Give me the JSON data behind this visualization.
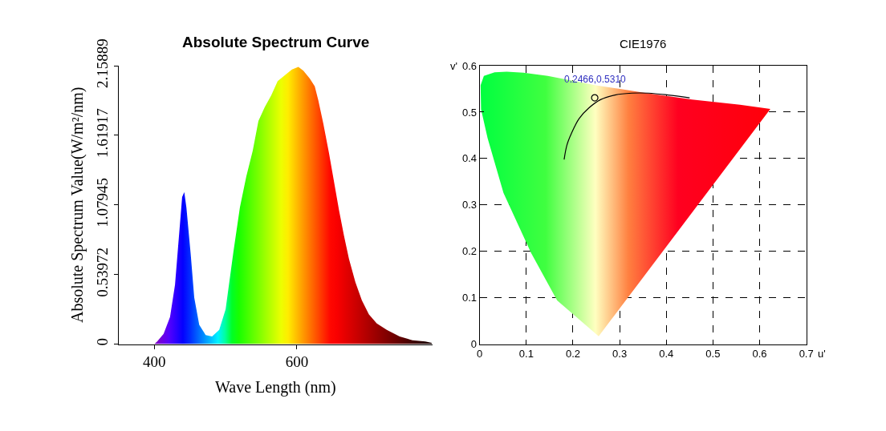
{
  "chart_data": [
    {
      "type": "area",
      "title": "Absolute Spectrum Curve",
      "xlabel": "Wave Length (nm)",
      "ylabel": "Absolute Spectrum Value(W/m²/nm)",
      "xlim": [
        350,
        790
      ],
      "xticks": [
        400,
        600
      ],
      "ylim": [
        0,
        2.15889
      ],
      "yticks": [
        0,
        0.53972,
        1.07945,
        1.61917,
        2.15889
      ],
      "grid": false,
      "series": [
        {
          "x": [
            400,
            404,
            413,
            422,
            429,
            434,
            439,
            442,
            445,
            451,
            456,
            463,
            472,
            481,
            491,
            500,
            511,
            520,
            529,
            538,
            546,
            555,
            564,
            573,
            584,
            593,
            602,
            609,
            618,
            625,
            630,
            637,
            645,
            652,
            659,
            666,
            673,
            682,
            691,
            701,
            712,
            726,
            744,
            762,
            780,
            789
          ],
          "values": [
            0,
            0.02,
            0.08,
            0.21,
            0.46,
            0.8,
            1.14,
            1.18,
            1.06,
            0.7,
            0.36,
            0.15,
            0.07,
            0.06,
            0.11,
            0.27,
            0.72,
            1.06,
            1.3,
            1.5,
            1.73,
            1.84,
            1.93,
            2.04,
            2.09,
            2.13,
            2.15,
            2.12,
            2.06,
            2.0,
            1.89,
            1.71,
            1.48,
            1.26,
            1.04,
            0.84,
            0.66,
            0.48,
            0.34,
            0.23,
            0.16,
            0.11,
            0.06,
            0.03,
            0.02,
            0.01
          ]
        }
      ]
    },
    {
      "type": "line",
      "title": "CIE1976",
      "xlabel": "u'",
      "ylabel": "v'",
      "xlim": [
        0,
        0.7
      ],
      "xticks": [
        0,
        0.1,
        0.2,
        0.3,
        0.4,
        0.5,
        0.6,
        0.7
      ],
      "ylim": [
        0,
        0.6
      ],
      "yticks": [
        0,
        0.1,
        0.2,
        0.3,
        0.4,
        0.5,
        0.6
      ],
      "grid": true,
      "annotations": [
        {
          "text": "0.2466,0.5310",
          "x": 0.2466,
          "y": 0.531
        }
      ],
      "series": [
        {
          "type": "area",
          "x": [
            0.255,
            0.166,
            0.11,
            0.051,
            0.017,
            0.003,
            0.002,
            0.009,
            0.032,
            0.058,
            0.094,
            0.146,
            0.197,
            0.249,
            0.301,
            0.352,
            0.455,
            0.558,
            0.623,
            0.255
          ],
          "values": [
            0.017,
            0.094,
            0.197,
            0.326,
            0.444,
            0.506,
            0.558,
            0.578,
            0.586,
            0.587,
            0.585,
            0.578,
            0.568,
            0.558,
            0.55,
            0.542,
            0.527,
            0.516,
            0.507,
            0.017
          ]
        },
        {
          "type": "line",
          "color": "#000000",
          "line_style": "solid",
          "x": [
            0.181,
            0.187,
            0.197,
            0.213,
            0.234,
            0.259,
            0.29,
            0.326,
            0.362,
            0.404,
            0.45
          ],
          "values": [
            0.398,
            0.429,
            0.455,
            0.486,
            0.509,
            0.527,
            0.537,
            0.541,
            0.541,
            0.537,
            0.531
          ]
        },
        {
          "type": "scatter",
          "color": "#000000",
          "marker": "circle",
          "x": [
            0.2466
          ],
          "values": [
            0.531
          ]
        }
      ]
    }
  ]
}
